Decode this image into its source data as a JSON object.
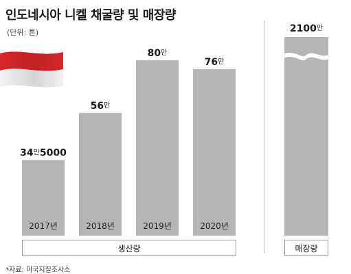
{
  "title": "인도네시아 니켈 채굴량 및 매장량",
  "unit_label": "(단위: 톤)",
  "source": "*자료: 미국지질조사소",
  "colors": {
    "bar": "#b5b5b5",
    "bar_shade": "#a3a3a3",
    "flag_red": "#d9262b",
    "flag_white": "#f4f4f4"
  },
  "chart_data": {
    "type": "bar",
    "group_labels": {
      "production": "생산량",
      "reserves": "매장량"
    },
    "production": {
      "categories": [
        "2017년",
        "2018년",
        "2019년",
        "2020년"
      ],
      "values": [
        345000,
        560000,
        800000,
        760000
      ],
      "value_labels": [
        {
          "num": "34",
          "unit": "만",
          "rest": "5000"
        },
        {
          "num": "56",
          "unit": "만",
          "rest": ""
        },
        {
          "num": "80",
          "unit": "만",
          "rest": ""
        },
        {
          "num": "76",
          "unit": "만",
          "rest": ""
        }
      ]
    },
    "reserves": {
      "value": 21000000,
      "value_label": {
        "num": "2100",
        "unit": "만",
        "rest": ""
      },
      "axis_break": true
    }
  }
}
